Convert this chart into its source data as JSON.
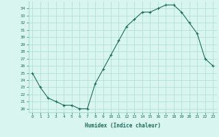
{
  "x": [
    0,
    1,
    2,
    3,
    4,
    5,
    6,
    7,
    8,
    9,
    10,
    11,
    12,
    13,
    14,
    15,
    16,
    17,
    18,
    19,
    20,
    21,
    22,
    23
  ],
  "y": [
    25.0,
    23.0,
    21.5,
    21.0,
    20.5,
    20.5,
    20.0,
    20.0,
    23.5,
    25.5,
    27.5,
    29.5,
    31.5,
    32.5,
    33.5,
    33.5,
    34.0,
    34.5,
    34.5,
    33.5,
    32.0,
    30.5,
    27.0,
    26.0
  ],
  "xlabel": "Humidex (Indice chaleur)",
  "ylim": [
    19.5,
    35.0
  ],
  "xlim": [
    -0.5,
    23.5
  ],
  "yticks": [
    20,
    21,
    22,
    23,
    24,
    25,
    26,
    27,
    28,
    29,
    30,
    31,
    32,
    33,
    34
  ],
  "xticks": [
    0,
    1,
    2,
    3,
    4,
    5,
    6,
    7,
    8,
    9,
    10,
    11,
    12,
    13,
    14,
    15,
    16,
    17,
    18,
    19,
    20,
    21,
    22,
    23
  ],
  "line_color": "#1a6b5a",
  "bg_color": "#d8f5ef",
  "grid_color": "#aaddcc",
  "font_color": "#1a6b5a"
}
